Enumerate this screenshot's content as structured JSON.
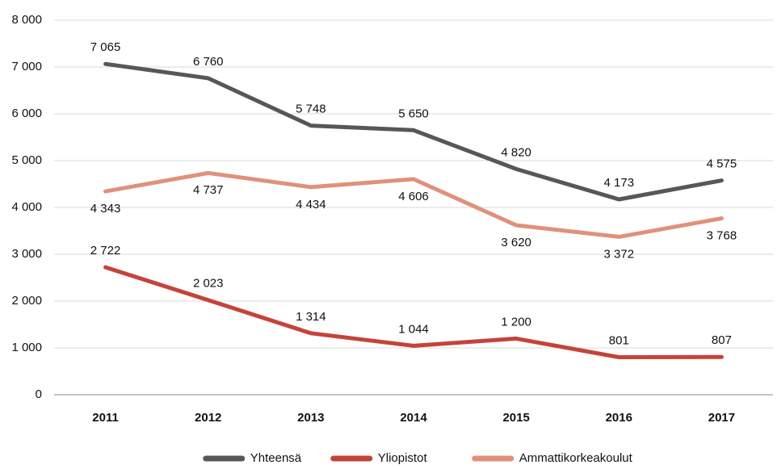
{
  "chart_data": {
    "type": "line",
    "categories": [
      "2011",
      "2012",
      "2013",
      "2014",
      "2015",
      "2016",
      "2017"
    ],
    "series": [
      {
        "name": "Yhteensä",
        "color": "#575757",
        "values": [
          7065,
          6760,
          5748,
          5650,
          4820,
          4173,
          4575
        ],
        "value_labels": [
          "7 065",
          "6 760",
          "5 748",
          "5 650",
          "4 820",
          "4 173",
          "4 575"
        ]
      },
      {
        "name": "Yliopistot",
        "color": "#c5433a",
        "values": [
          2722,
          2023,
          1314,
          1044,
          1200,
          801,
          807
        ],
        "value_labels": [
          "2 722",
          "2 023",
          "1 314",
          "1 044",
          "1 200",
          "801",
          "807"
        ]
      },
      {
        "name": "Ammattikorkeakoulut",
        "color": "#e0917b",
        "values": [
          4343,
          4737,
          4434,
          4606,
          3620,
          3372,
          3768
        ],
        "value_labels": [
          "4 343",
          "4 737",
          "4 434",
          "4 606",
          "3 620",
          "3 372",
          "3 768"
        ]
      }
    ],
    "ylim": [
      0,
      8000
    ],
    "yticks": [
      0,
      {
        "value": 1000,
        "label": "1 000"
      },
      {
        "value": 2000,
        "label": "2 000"
      },
      {
        "value": 3000,
        "label": "3 000"
      },
      {
        "value": 4000,
        "label": "4 000"
      },
      {
        "value": 5000,
        "label": "5 000"
      },
      {
        "value": 6000,
        "label": "6 000"
      },
      {
        "value": 7000,
        "label": "7 000"
      },
      {
        "value": 8000,
        "label": "8 000"
      }
    ],
    "grid": true,
    "legend": "bottom"
  }
}
